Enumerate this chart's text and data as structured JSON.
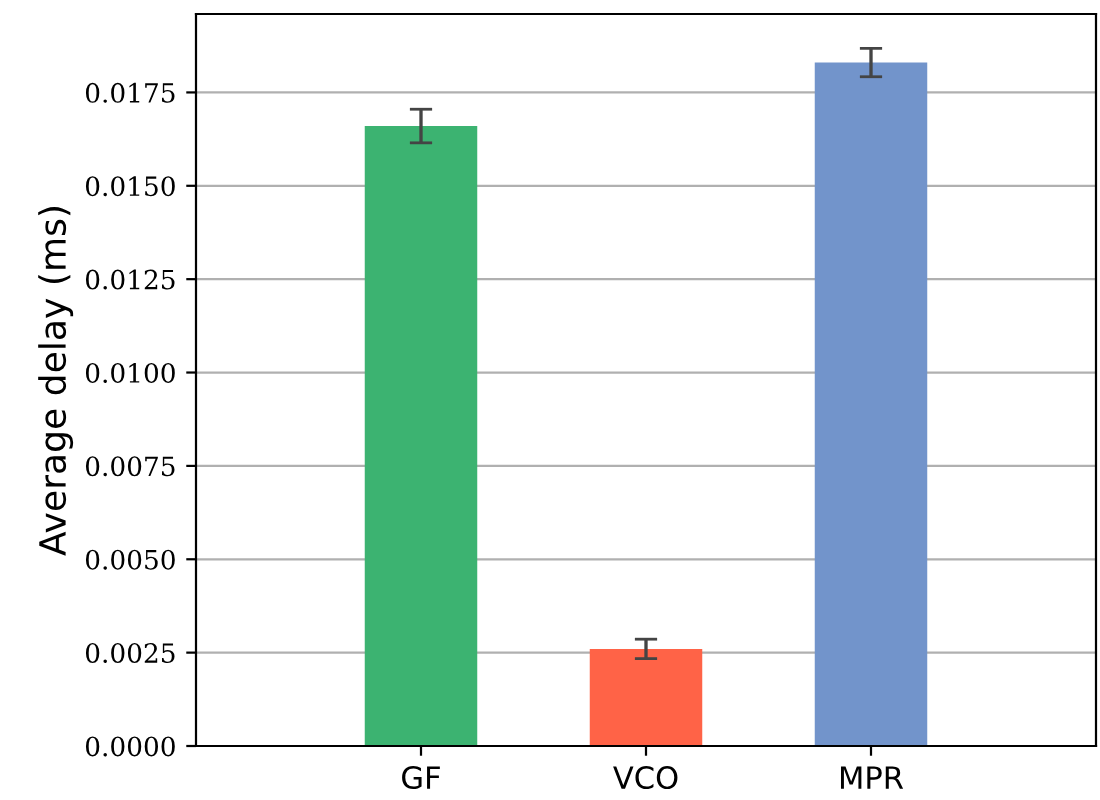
{
  "chart_data": {
    "type": "bar",
    "ylabel": "Average delay (ms)",
    "categories": [
      "GF",
      "VCO",
      "MPR"
    ],
    "values": [
      0.0166,
      0.0026,
      0.0183
    ],
    "errors": [
      0.00045,
      0.00026,
      0.00038
    ],
    "colors": [
      "#3cb371",
      "#ff6347",
      "#7294cb"
    ],
    "ylim": [
      0,
      0.0196
    ],
    "yticks": [
      {
        "value": 0,
        "label": "0.0000"
      },
      {
        "value": 0.0025,
        "label": "0.0025"
      },
      {
        "value": 0.005,
        "label": "0.0050"
      },
      {
        "value": 0.0075,
        "label": "0.0075"
      },
      {
        "value": 0.01,
        "label": "0.0100"
      },
      {
        "value": 0.0125,
        "label": "0.0125"
      },
      {
        "value": 0.015,
        "label": "0.0150"
      },
      {
        "value": 0.0175,
        "label": "0.0175"
      }
    ],
    "grid": "y"
  }
}
